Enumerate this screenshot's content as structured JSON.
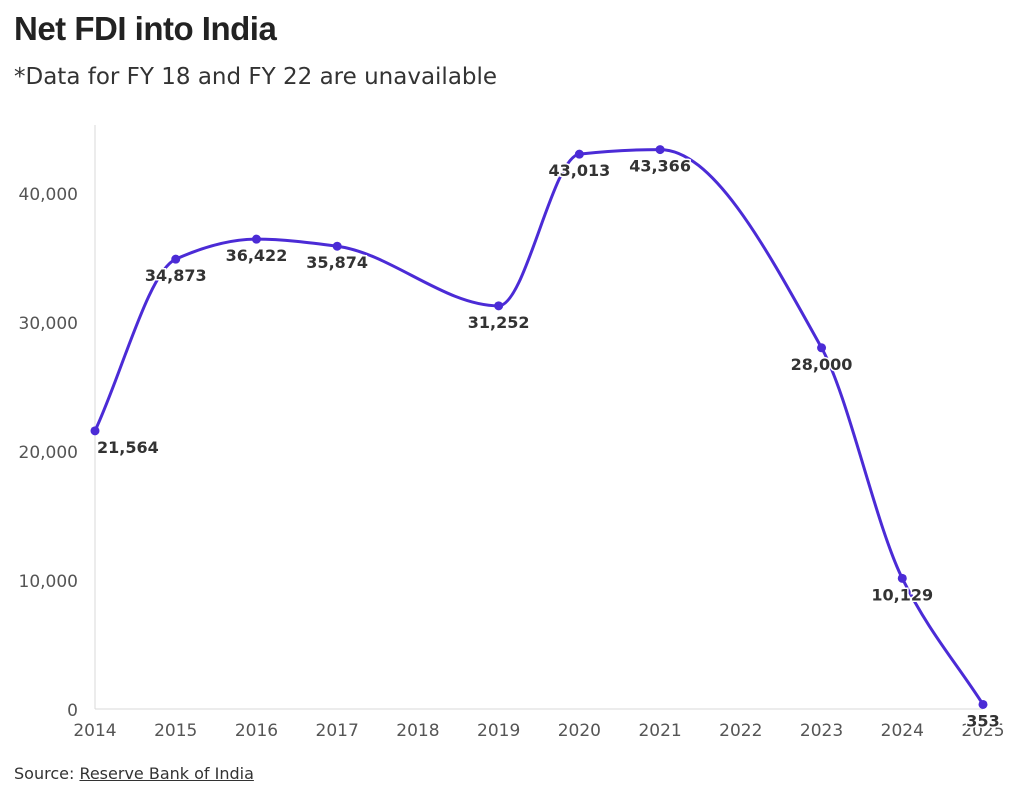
{
  "chart_data": {
    "type": "line",
    "title": "Net FDI into India",
    "subtitle": "*Data for FY 18 and FY 22 are unavailable",
    "xlabel": "",
    "ylabel": "",
    "x_ticks": [
      "2014",
      "2015",
      "2016",
      "2017",
      "2018",
      "2019",
      "2020",
      "2021",
      "2022",
      "2023",
      "2024",
      "2025"
    ],
    "y_ticks": [
      "0",
      "10,000",
      "20,000",
      "30,000",
      "40,000"
    ],
    "ylim": [
      0,
      45000
    ],
    "grid": false,
    "color": "#4B2BD6",
    "series": [
      {
        "name": "",
        "points": [
          {
            "x": 2014,
            "y": 21564,
            "label": "21,564"
          },
          {
            "x": 2015,
            "y": 34873,
            "label": "34,873"
          },
          {
            "x": 2016,
            "y": 36422,
            "label": "36,422"
          },
          {
            "x": 2017,
            "y": 35874,
            "label": "35,874"
          },
          {
            "x": 2019,
            "y": 31252,
            "label": "31,252"
          },
          {
            "x": 2020,
            "y": 43013,
            "label": "43,013"
          },
          {
            "x": 2021,
            "y": 43366,
            "label": "43,366"
          },
          {
            "x": 2023,
            "y": 28000,
            "label": "28,000"
          },
          {
            "x": 2024,
            "y": 10129,
            "label": "10,129"
          },
          {
            "x": 2025,
            "y": 353,
            "label": "353"
          }
        ]
      }
    ]
  },
  "source": {
    "prefix": "Source: ",
    "link_text": "Reserve Bank of India"
  }
}
